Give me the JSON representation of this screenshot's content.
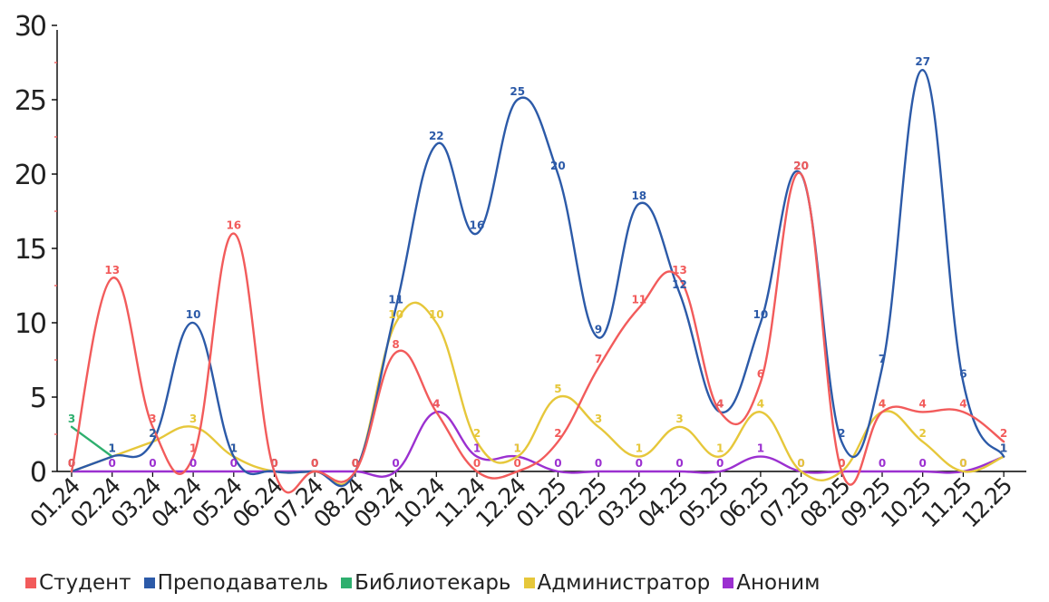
{
  "chart_data": {
    "type": "line",
    "title": "",
    "xlabel": "",
    "ylabel": "",
    "ylim": [
      0,
      30
    ],
    "yticks": [
      0,
      5,
      10,
      15,
      20,
      25,
      30
    ],
    "categories": [
      "01.24",
      "02.24",
      "03.24",
      "04.24",
      "05.24",
      "06.24",
      "07.24",
      "08.24",
      "09.24",
      "10.24",
      "11.24",
      "12.24",
      "01.25",
      "02.25",
      "03.25",
      "04.25",
      "05.25",
      "06.25",
      "07.25",
      "08.25",
      "09.25",
      "10.25",
      "11.25",
      "12.25"
    ],
    "grid": false,
    "legend_position": "bottom",
    "series": [
      {
        "name": "Студент",
        "color": "#f25b5b",
        "values": [
          0,
          13,
          3,
          1,
          16,
          0,
          0,
          0,
          8,
          4,
          0,
          0,
          2,
          7,
          11,
          13,
          4,
          6,
          20,
          0,
          4,
          4,
          4,
          2
        ]
      },
      {
        "name": "Преподаватель",
        "color": "#2c5aa8",
        "values": [
          0,
          1,
          2,
          10,
          1,
          0,
          0,
          0,
          11,
          22,
          16,
          25,
          20,
          9,
          18,
          12,
          4,
          10,
          20,
          2,
          7,
          27,
          6,
          1
        ]
      },
      {
        "name": "Библиотекарь",
        "color": "#2eaf6e",
        "values": [
          3,
          1,
          null,
          null,
          null,
          null,
          null,
          null,
          null,
          null,
          null,
          null,
          null,
          null,
          null,
          null,
          null,
          null,
          null,
          null,
          null,
          null,
          null,
          null
        ]
      },
      {
        "name": "Администратор",
        "color": "#e6c73a",
        "values": [
          0,
          1,
          2,
          3,
          1,
          0,
          0,
          0,
          10,
          10,
          2,
          1,
          5,
          3,
          1,
          3,
          1,
          4,
          0,
          0,
          4,
          2,
          0,
          1
        ]
      },
      {
        "name": "Аноним",
        "color": "#9b30d0",
        "values": [
          0,
          0,
          0,
          0,
          0,
          0,
          0,
          0,
          0,
          4,
          1,
          1,
          0,
          0,
          0,
          0,
          0,
          1,
          0,
          0,
          0,
          0,
          0,
          1
        ]
      }
    ]
  }
}
